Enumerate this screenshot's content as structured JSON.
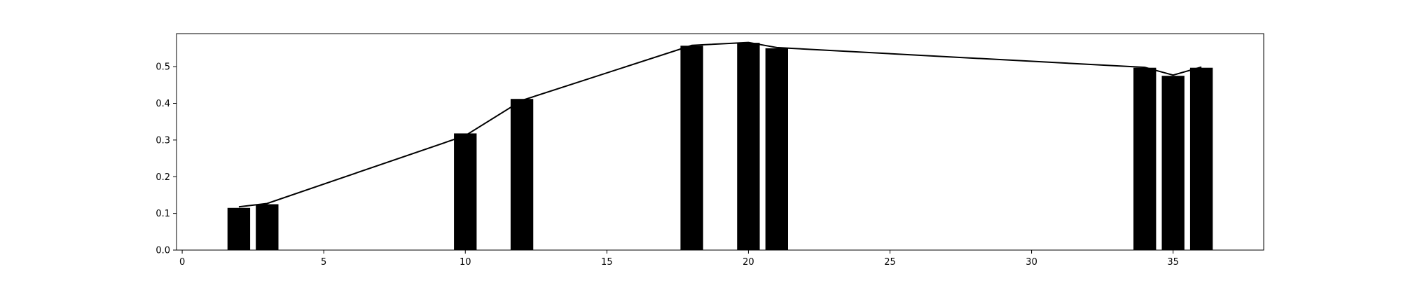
{
  "chart_data": {
    "type": "bar",
    "title": "",
    "xlabel": "",
    "ylabel": "",
    "xlim": [
      -0.2,
      38.2
    ],
    "ylim": [
      0.0,
      0.59
    ],
    "grid": false,
    "x_ticks": [
      0,
      5,
      10,
      15,
      20,
      25,
      30,
      35
    ],
    "x_tick_labels": [
      "0",
      "5",
      "10",
      "15",
      "20",
      "25",
      "30",
      "35"
    ],
    "y_ticks": [
      0.0,
      0.1,
      0.2,
      0.3,
      0.4,
      0.5
    ],
    "y_tick_labels": [
      "0.0",
      "0.1",
      "0.2",
      "0.3",
      "0.4",
      "0.5"
    ],
    "x": [
      2,
      3,
      10,
      12,
      18,
      20,
      21,
      34,
      35,
      36
    ],
    "bar_values": [
      0.115,
      0.125,
      0.318,
      0.412,
      0.557,
      0.565,
      0.55,
      0.497,
      0.475,
      0.497
    ],
    "line_values": [
      0.118,
      0.127,
      0.312,
      0.408,
      0.558,
      0.566,
      0.552,
      0.498,
      0.477,
      0.499
    ],
    "bar_width": 0.8,
    "colors": {
      "bar": "#000000",
      "line": "#000000",
      "axes": "#000000",
      "background": "#ffffff"
    }
  }
}
